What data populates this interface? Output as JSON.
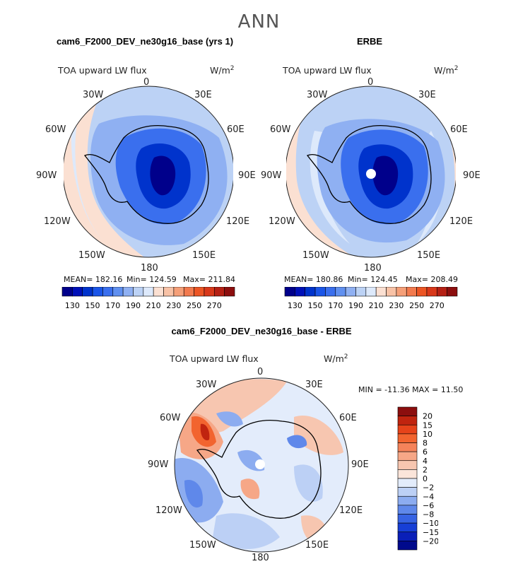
{
  "season": "ANN",
  "variable": "TOA upward LW flux",
  "units": "W/m",
  "units_sup": "2",
  "lon_labels": [
    "0",
    "30E",
    "60E",
    "90E",
    "120E",
    "150E",
    "180",
    "150W",
    "120W",
    "90W",
    "60W",
    "30W"
  ],
  "panels": [
    {
      "title": "cam6_F2000_DEV_ne30g16_base (yrs 1)",
      "mean": "MEAN= 182.16",
      "min": "Min= 124.59",
      "max": "Max= 211.84"
    },
    {
      "title": "ERBE",
      "mean": "MEAN= 180.86",
      "min": "Min= 124.45",
      "max": "Max= 208.49"
    }
  ],
  "diff": {
    "title": "cam6_F2000_DEV_ne30g16_base - ERBE",
    "minmax": "MIN = -11.36 MAX =  11.50"
  },
  "colorbar_top": {
    "labels": [
      "130",
      "150",
      "170",
      "190",
      "210",
      "230",
      "250",
      "270"
    ],
    "colors": [
      "#00008b",
      "#0010b8",
      "#0033cc",
      "#1a55e8",
      "#3a6fee",
      "#6090f0",
      "#8fb0f2",
      "#bcd2f5",
      "#dde9fb",
      "#fbe0d2",
      "#f8c2a6",
      "#f59f78",
      "#f27a4e",
      "#ec5524",
      "#d8381a",
      "#b52014",
      "#8c0e0e"
    ]
  },
  "colorbar_diff": {
    "labels": [
      "20",
      "15",
      "10",
      "8",
      "6",
      "4",
      "2",
      "0",
      "−2",
      "−4",
      "−6",
      "−8",
      "−10",
      "−15",
      "−20"
    ],
    "colors": [
      "#8c0e0e",
      "#c0240f",
      "#e6431a",
      "#f2642f",
      "#f5835a",
      "#f6a787",
      "#f7c6b0",
      "#fbe5da",
      "#e3ecfb",
      "#bcd0f5",
      "#8cacf0",
      "#5f88ea",
      "#3763e3",
      "#173fd6",
      "#0a1fb8",
      "#000a8c"
    ]
  },
  "chart_data": {
    "type": "map",
    "projection": "south polar stereographic",
    "colorbar_top_levels": [
      130,
      150,
      170,
      190,
      210,
      230,
      250,
      270
    ],
    "colorbar_diff_levels": [
      20,
      15,
      10,
      8,
      6,
      4,
      2,
      0,
      -2,
      -4,
      -6,
      -8,
      -10,
      -15,
      -20
    ]
  }
}
